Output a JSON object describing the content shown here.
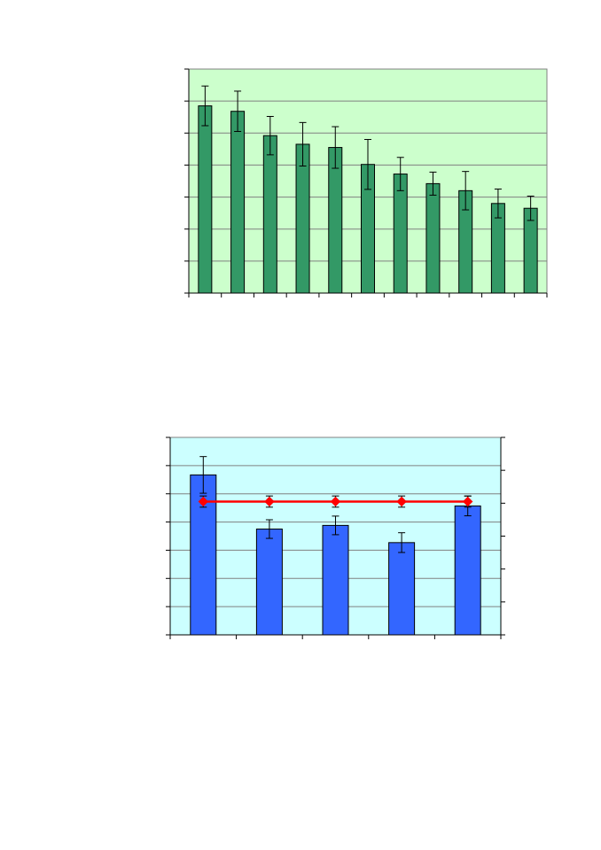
{
  "page": {
    "background": "#ffffff"
  },
  "chart_data": [
    {
      "type": "bar",
      "title": "",
      "xlabel": "",
      "ylabel": "",
      "ylim": [
        0,
        7
      ],
      "grid": true,
      "legend": "none",
      "colors": {
        "plot_bg": "#ccffcc",
        "bar": "#339966",
        "outline": "#000000",
        "grid": "#808080",
        "frame_bg": "#ffffff"
      },
      "series": [
        {
          "values": [
            5.85,
            5.68,
            4.92,
            4.65,
            4.55,
            4.02,
            3.72,
            3.42,
            3.2,
            2.8,
            2.65
          ],
          "errors": [
            0.62,
            0.63,
            0.6,
            0.68,
            0.65,
            0.78,
            0.52,
            0.36,
            0.6,
            0.45,
            0.38
          ]
        }
      ]
    },
    {
      "type": "bar",
      "title": "",
      "xlabel": "",
      "ylabel": "",
      "ylim": [
        0,
        7
      ],
      "y2lim": [
        0,
        6
      ],
      "grid": true,
      "legend": "none",
      "colors": {
        "plot_bg": "#ccffff",
        "bar": "#3366ff",
        "line": "#ff0000",
        "outline": "#000000",
        "grid": "#808080"
      },
      "series": [
        {
          "kind": "bar",
          "values": [
            5.67,
            3.75,
            3.88,
            3.27,
            4.57
          ],
          "errors": [
            0.65,
            0.33,
            0.33,
            0.35,
            0.35
          ]
        },
        {
          "kind": "line",
          "axis": "secondary",
          "values": [
            4.05,
            4.05,
            4.05,
            4.05,
            4.05
          ],
          "errors": [
            0.17,
            0.17,
            0.17,
            0.17,
            0.17
          ]
        }
      ]
    }
  ]
}
